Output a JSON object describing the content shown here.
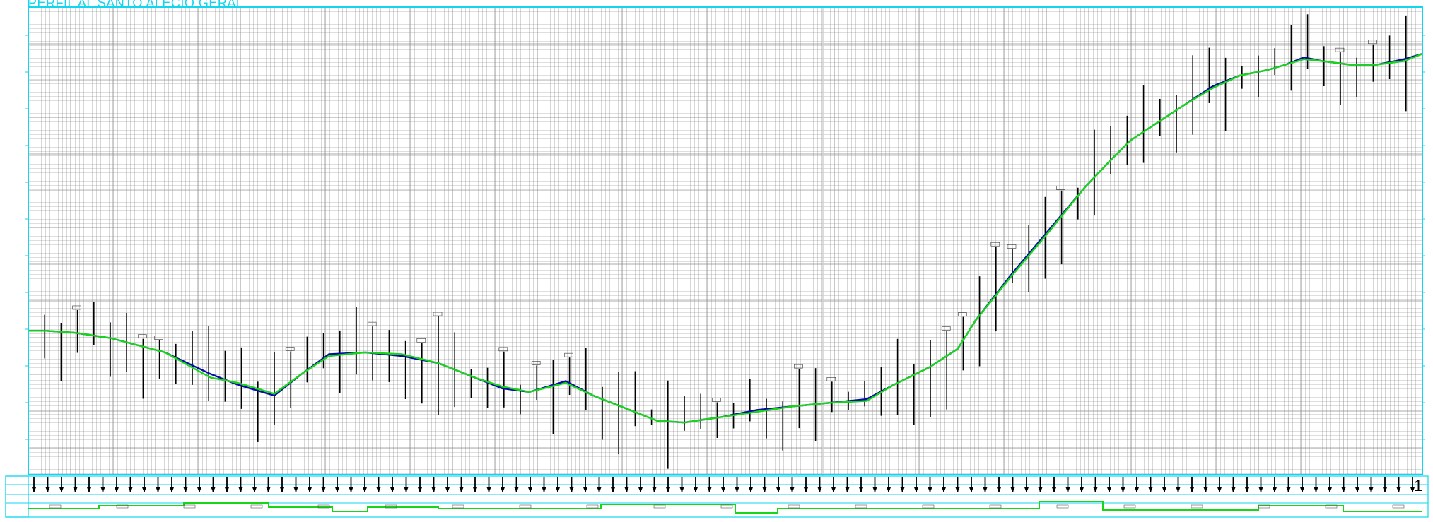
{
  "title": "PERFIL AL SANTO ALÉCIO GERAL",
  "colors": {
    "frame": "#12d6f0",
    "grid": "#7a7a7a",
    "background": "#ffffff",
    "ground_line": "#0a0aa8",
    "design_line": "#17d617",
    "station_marks": "#000000"
  },
  "sheet_number": "1",
  "profile": {
    "ground_elevation": [
      [
        0,
        290
      ],
      [
        20,
        290
      ],
      [
        50,
        289.5
      ],
      [
        90,
        288
      ],
      [
        150,
        284
      ],
      [
        200,
        278
      ],
      [
        230,
        275
      ],
      [
        270,
        272
      ],
      [
        300,
        278
      ],
      [
        330,
        283.5
      ],
      [
        370,
        284
      ],
      [
        410,
        283
      ],
      [
        450,
        281
      ],
      [
        490,
        277
      ],
      [
        520,
        274
      ],
      [
        550,
        273
      ],
      [
        590,
        276
      ],
      [
        620,
        272
      ],
      [
        660,
        268
      ],
      [
        690,
        265
      ],
      [
        720,
        264.5
      ],
      [
        760,
        266
      ],
      [
        800,
        268
      ],
      [
        840,
        269
      ],
      [
        880,
        270
      ],
      [
        920,
        271
      ],
      [
        950,
        275
      ],
      [
        990,
        280
      ],
      [
        1020,
        285
      ],
      [
        1040,
        293
      ],
      [
        1080,
        306
      ],
      [
        1120,
        318
      ],
      [
        1160,
        330
      ],
      [
        1190,
        338
      ],
      [
        1210,
        343
      ],
      [
        1240,
        348
      ],
      [
        1270,
        353
      ],
      [
        1300,
        358
      ],
      [
        1330,
        361
      ],
      [
        1360,
        362.5
      ],
      [
        1380,
        364
      ],
      [
        1400,
        366
      ],
      [
        1420,
        365
      ],
      [
        1450,
        364
      ],
      [
        1480,
        364
      ],
      [
        1510,
        365.5
      ],
      [
        1530,
        367
      ]
    ],
    "design_elevation": [
      [
        0,
        290
      ],
      [
        20,
        290
      ],
      [
        50,
        289.5
      ],
      [
        90,
        288
      ],
      [
        150,
        284
      ],
      [
        200,
        277
      ],
      [
        230,
        275.5
      ],
      [
        270,
        272.5
      ],
      [
        300,
        278
      ],
      [
        330,
        283
      ],
      [
        370,
        284
      ],
      [
        410,
        283.5
      ],
      [
        450,
        281
      ],
      [
        490,
        277
      ],
      [
        520,
        274.5
      ],
      [
        550,
        273
      ],
      [
        590,
        275.5
      ],
      [
        620,
        272
      ],
      [
        660,
        268
      ],
      [
        690,
        265
      ],
      [
        720,
        264.5
      ],
      [
        760,
        266
      ],
      [
        800,
        267.5
      ],
      [
        840,
        269
      ],
      [
        880,
        270
      ],
      [
        920,
        270.5
      ],
      [
        950,
        275
      ],
      [
        990,
        280
      ],
      [
        1020,
        285
      ],
      [
        1040,
        293
      ],
      [
        1080,
        305.5
      ],
      [
        1120,
        317.5
      ],
      [
        1160,
        330
      ],
      [
        1190,
        338
      ],
      [
        1210,
        343
      ],
      [
        1240,
        348
      ],
      [
        1270,
        353
      ],
      [
        1300,
        357.5
      ],
      [
        1330,
        361
      ],
      [
        1360,
        362.5
      ],
      [
        1380,
        364
      ],
      [
        1400,
        365.5
      ],
      [
        1420,
        365
      ],
      [
        1450,
        364
      ],
      [
        1480,
        364
      ],
      [
        1510,
        365
      ],
      [
        1530,
        367
      ]
    ],
    "x_range": [
      0,
      1530
    ],
    "y_range": [
      250,
      380
    ]
  }
}
